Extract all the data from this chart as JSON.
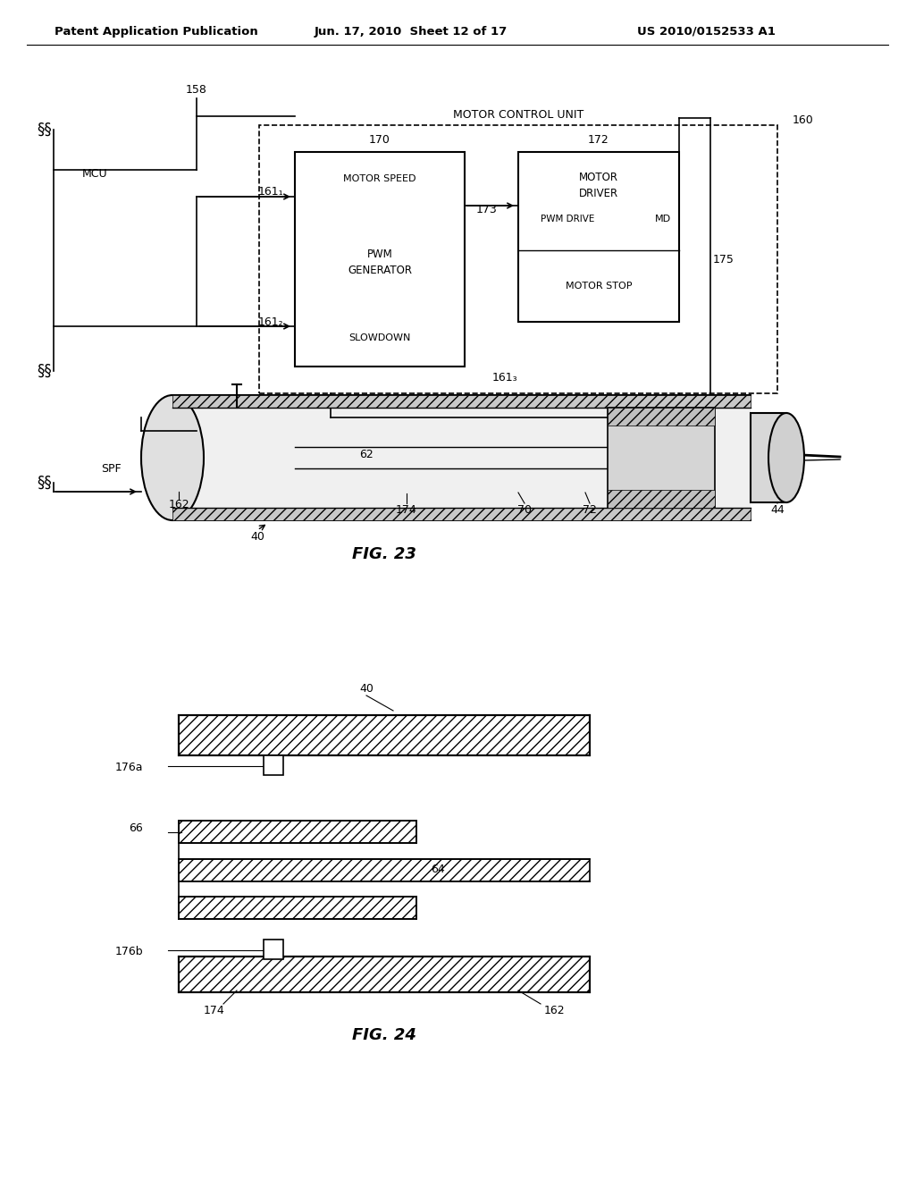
{
  "header_left": "Patent Application Publication",
  "header_mid": "Jun. 17, 2010  Sheet 12 of 17",
  "header_right": "US 2010/0152533 A1",
  "fig23_label": "FIG. 23",
  "fig24_label": "FIG. 24",
  "bg_color": "#ffffff"
}
